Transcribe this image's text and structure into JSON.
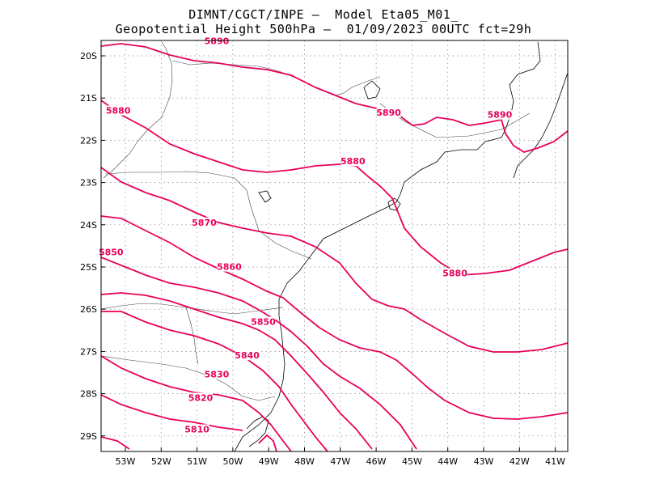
{
  "title": {
    "line1": "DIMNT/CGCT/INPE –  Model Eta05_M01_",
    "line2": "Geopotential Height 500hPa –  01/09/2023 00UTC fct=29h"
  },
  "axes": {
    "lat_labels": [
      "20S",
      "21S",
      "22S",
      "23S",
      "24S",
      "25S",
      "26S",
      "27S",
      "28S",
      "29S"
    ],
    "lon_labels": [
      "53W",
      "52W",
      "51W",
      "50W",
      "49W",
      "48W",
      "47W",
      "46W",
      "45W",
      "44W",
      "43W",
      "42W",
      "41W"
    ],
    "lat_range": [
      -29.4,
      -19.6
    ],
    "lon_range": [
      -53.7,
      -40.5
    ]
  },
  "colors": {
    "contour": "#e8005a",
    "coast": "#000000",
    "grid": "#888888"
  },
  "contour_labels": [
    {
      "text": "5890",
      "lon": -50.45,
      "lat": -19.7
    },
    {
      "text": "5880",
      "lon": -53.2,
      "lat": -21.35
    },
    {
      "text": "5890",
      "lon": -45.65,
      "lat": -21.4
    },
    {
      "text": "5890",
      "lon": -42.55,
      "lat": -21.45
    },
    {
      "text": "5880",
      "lon": -46.65,
      "lat": -22.55
    },
    {
      "text": "5870",
      "lon": -50.8,
      "lat": -24.0
    },
    {
      "text": "5850",
      "lon": -53.4,
      "lat": -24.7
    },
    {
      "text": "5860",
      "lon": -50.1,
      "lat": -25.05
    },
    {
      "text": "5880",
      "lon": -43.8,
      "lat": -25.2
    },
    {
      "text": "5850",
      "lon": -49.15,
      "lat": -26.35
    },
    {
      "text": "5840",
      "lon": -49.6,
      "lat": -27.15
    },
    {
      "text": "5830",
      "lon": -50.45,
      "lat": -27.6
    },
    {
      "text": "5820",
      "lon": -50.9,
      "lat": -28.15
    },
    {
      "text": "5810",
      "lon": -51.0,
      "lat": -28.9
    }
  ]
}
